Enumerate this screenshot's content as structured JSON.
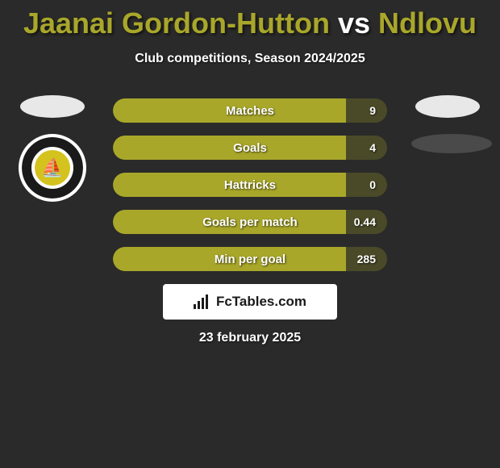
{
  "background_color": "#2a2a2a",
  "title": {
    "player1": "Jaanai Gordon-Hutton",
    "vs": "vs",
    "player2": "Ndlovu",
    "color_main": "#a9a72a",
    "color_vs": "#ffffff",
    "fontsize": 36
  },
  "subtitle": "Club competitions, Season 2024/2025",
  "player1": {
    "ellipse_color": "#e8e8e8",
    "club_name": "Boston United",
    "club_inner_color": "#d4c21f",
    "club_ring_color": "#1a1a1a"
  },
  "player2": {
    "ellipse_color": "#e8e8e8",
    "ellipse2_color": "#4a4a4a"
  },
  "bars": {
    "track_color": "#4a4a28",
    "fill_color": "#a9a72a",
    "label_color": "#ffffff",
    "rows": [
      {
        "label": "Matches",
        "left": "",
        "right": "9",
        "fill_pct": 85
      },
      {
        "label": "Goals",
        "left": "",
        "right": "4",
        "fill_pct": 85
      },
      {
        "label": "Hattricks",
        "left": "",
        "right": "0",
        "fill_pct": 85
      },
      {
        "label": "Goals per match",
        "left": "",
        "right": "0.44",
        "fill_pct": 85
      },
      {
        "label": "Min per goal",
        "left": "",
        "right": "285",
        "fill_pct": 85
      }
    ]
  },
  "brand": {
    "text": "FcTables.com",
    "text_color": "#1a1a1a",
    "box_color": "#ffffff"
  },
  "date": "23 february 2025"
}
